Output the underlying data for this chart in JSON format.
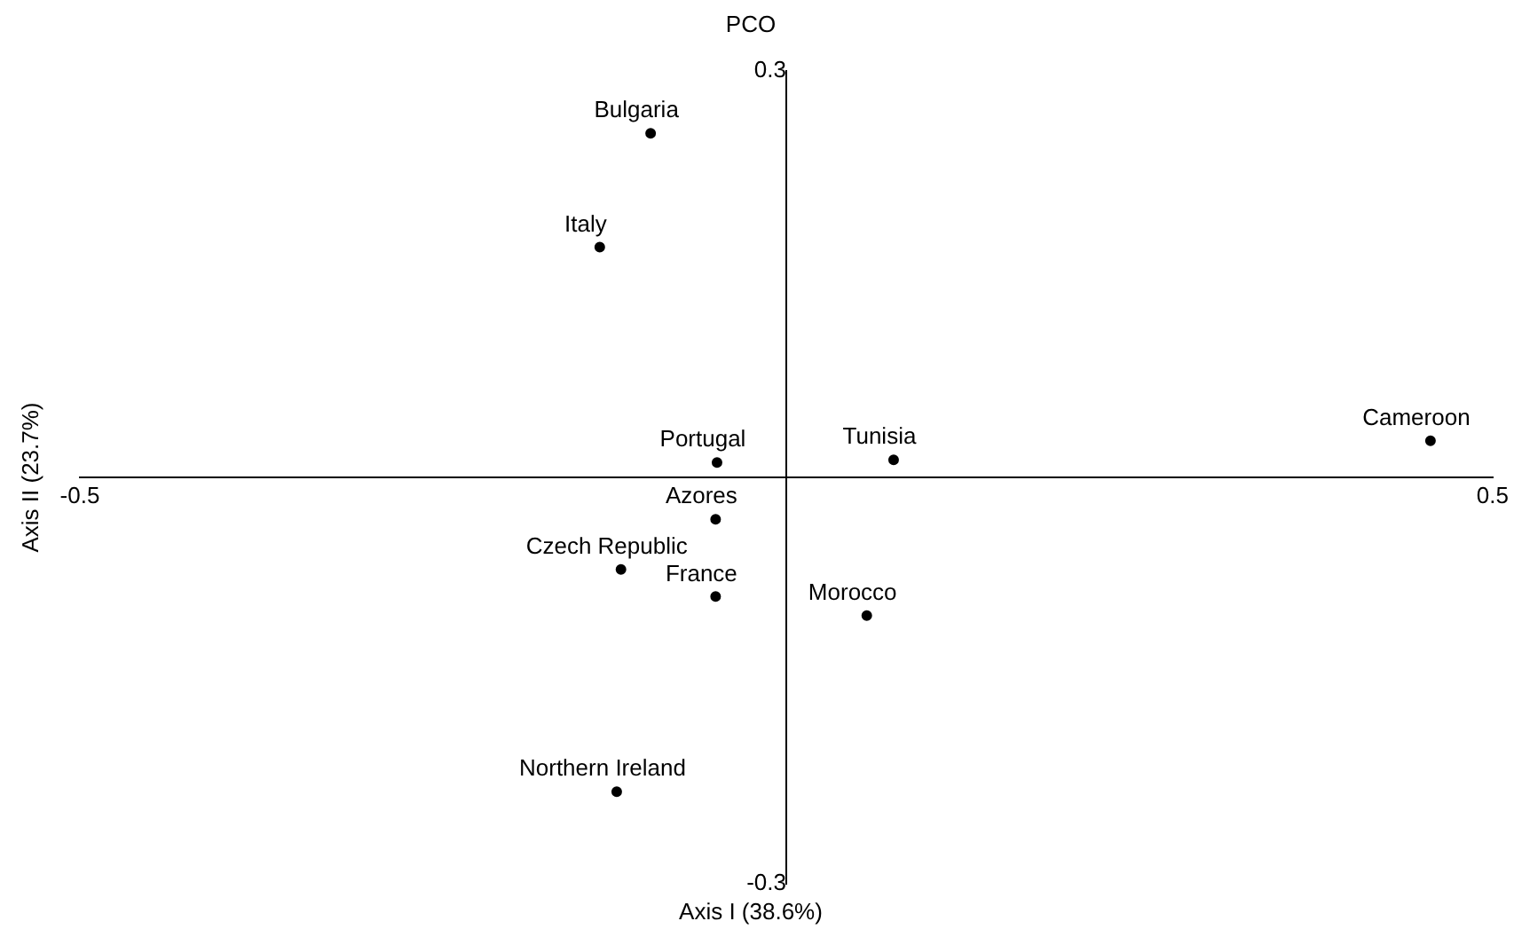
{
  "chart_data": {
    "type": "scatter",
    "title": "PCO",
    "xlabel": "Axis I (38.6%)",
    "ylabel": "Axis II (23.7%)",
    "x": [
      -0.096,
      -0.132,
      -0.049,
      0.076,
      0.456,
      -0.05,
      -0.117,
      -0.05,
      0.057,
      -0.12
    ],
    "values": [
      0.254,
      0.17,
      0.011,
      0.013,
      0.027,
      -0.031,
      -0.068,
      -0.088,
      -0.102,
      -0.232
    ],
    "color": "#000000",
    "marker": "circle",
    "grid": false,
    "legend": false,
    "xlim": [
      -0.5,
      0.5
    ],
    "xticks": [
      -0.5,
      0.5
    ],
    "ylim": [
      -0.3,
      0.3
    ],
    "yticks": [
      -0.3,
      0.3
    ],
    "annotations": [
      {
        "text": "Bulgaria",
        "x": -0.096,
        "y": 0.254
      },
      {
        "text": "Italy",
        "x": -0.132,
        "y": 0.17
      },
      {
        "text": "Portugal",
        "x": -0.049,
        "y": 0.011
      },
      {
        "text": "Tunisia",
        "x": 0.076,
        "y": 0.013
      },
      {
        "text": "Cameroon",
        "x": 0.456,
        "y": 0.027
      },
      {
        "text": "Azores",
        "x": -0.05,
        "y": -0.031
      },
      {
        "text": "Czech Republic",
        "x": -0.117,
        "y": -0.068
      },
      {
        "text": "France",
        "x": -0.05,
        "y": -0.088
      },
      {
        "text": "Morocco",
        "x": 0.057,
        "y": -0.102
      },
      {
        "text": "Northern Ireland",
        "x": -0.12,
        "y": -0.232
      }
    ]
  }
}
